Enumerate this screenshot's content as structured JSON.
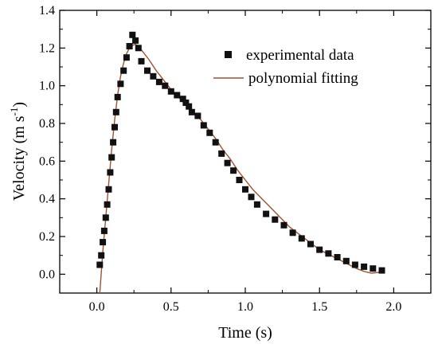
{
  "chart_data": {
    "type": "scatter",
    "xlabel": "Time (s)",
    "ylabel_main": "Velocity (m s",
    "ylabel_sup": "-1",
    "ylabel_close": ")",
    "xlim": [
      -0.25,
      2.25
    ],
    "ylim": [
      -0.1,
      1.4
    ],
    "x_ticks": [
      0.0,
      0.5,
      1.0,
      1.5,
      2.0
    ],
    "x_tick_labels": [
      "0.0",
      "0.5",
      "1.0",
      "1.5",
      "2.0"
    ],
    "y_ticks": [
      0.0,
      0.2,
      0.4,
      0.6,
      0.8,
      1.0,
      1.2,
      1.4
    ],
    "y_tick_labels": [
      "0.0",
      "0.2",
      "0.4",
      "0.6",
      "0.8",
      "1.0",
      "1.2",
      "1.4"
    ],
    "grid": false,
    "legend_position": "top-right",
    "colors": {
      "scatter": "#111111",
      "fit": "#a0522d"
    },
    "series": [
      {
        "name": "experimental data",
        "kind": "scatter",
        "x": [
          0.02,
          0.03,
          0.04,
          0.05,
          0.06,
          0.07,
          0.08,
          0.09,
          0.1,
          0.11,
          0.12,
          0.13,
          0.14,
          0.16,
          0.18,
          0.2,
          0.22,
          0.24,
          0.26,
          0.28,
          0.3,
          0.34,
          0.38,
          0.42,
          0.46,
          0.5,
          0.54,
          0.58,
          0.6,
          0.62,
          0.64,
          0.68,
          0.72,
          0.76,
          0.8,
          0.84,
          0.88,
          0.92,
          0.96,
          1.0,
          1.04,
          1.08,
          1.14,
          1.2,
          1.26,
          1.32,
          1.38,
          1.44,
          1.5,
          1.56,
          1.62,
          1.68,
          1.74,
          1.8,
          1.86,
          1.92
        ],
        "y": [
          0.05,
          0.1,
          0.17,
          0.23,
          0.3,
          0.37,
          0.45,
          0.54,
          0.62,
          0.7,
          0.78,
          0.86,
          0.94,
          1.01,
          1.08,
          1.15,
          1.21,
          1.27,
          1.24,
          1.2,
          1.13,
          1.08,
          1.05,
          1.02,
          1.0,
          0.97,
          0.95,
          0.93,
          0.91,
          0.89,
          0.86,
          0.84,
          0.79,
          0.75,
          0.7,
          0.64,
          0.59,
          0.55,
          0.5,
          0.45,
          0.41,
          0.37,
          0.32,
          0.29,
          0.26,
          0.22,
          0.19,
          0.16,
          0.13,
          0.11,
          0.09,
          0.07,
          0.05,
          0.04,
          0.03,
          0.02
        ]
      },
      {
        "name": "polynomial fitting",
        "kind": "line",
        "x": [
          0.02,
          0.04,
          0.06,
          0.08,
          0.1,
          0.12,
          0.14,
          0.16,
          0.18,
          0.2,
          0.22,
          0.24,
          0.26,
          0.28,
          0.3,
          0.35,
          0.4,
          0.45,
          0.5,
          0.55,
          0.6,
          0.65,
          0.7,
          0.75,
          0.8,
          0.85,
          0.9,
          0.95,
          1.0,
          1.05,
          1.1,
          1.15,
          1.2,
          1.25,
          1.3,
          1.35,
          1.4,
          1.45,
          1.5,
          1.55,
          1.6,
          1.65,
          1.7,
          1.75,
          1.8,
          1.85,
          1.9
        ],
        "y": [
          -0.1,
          0.12,
          0.3,
          0.48,
          0.66,
          0.82,
          0.95,
          1.05,
          1.12,
          1.17,
          1.2,
          1.215,
          1.22,
          1.21,
          1.19,
          1.14,
          1.08,
          1.03,
          0.98,
          0.94,
          0.9,
          0.86,
          0.82,
          0.77,
          0.72,
          0.66,
          0.61,
          0.55,
          0.5,
          0.45,
          0.41,
          0.37,
          0.33,
          0.29,
          0.25,
          0.22,
          0.19,
          0.16,
          0.13,
          0.11,
          0.09,
          0.07,
          0.05,
          0.03,
          0.015,
          0.005,
          0.01
        ]
      }
    ]
  }
}
